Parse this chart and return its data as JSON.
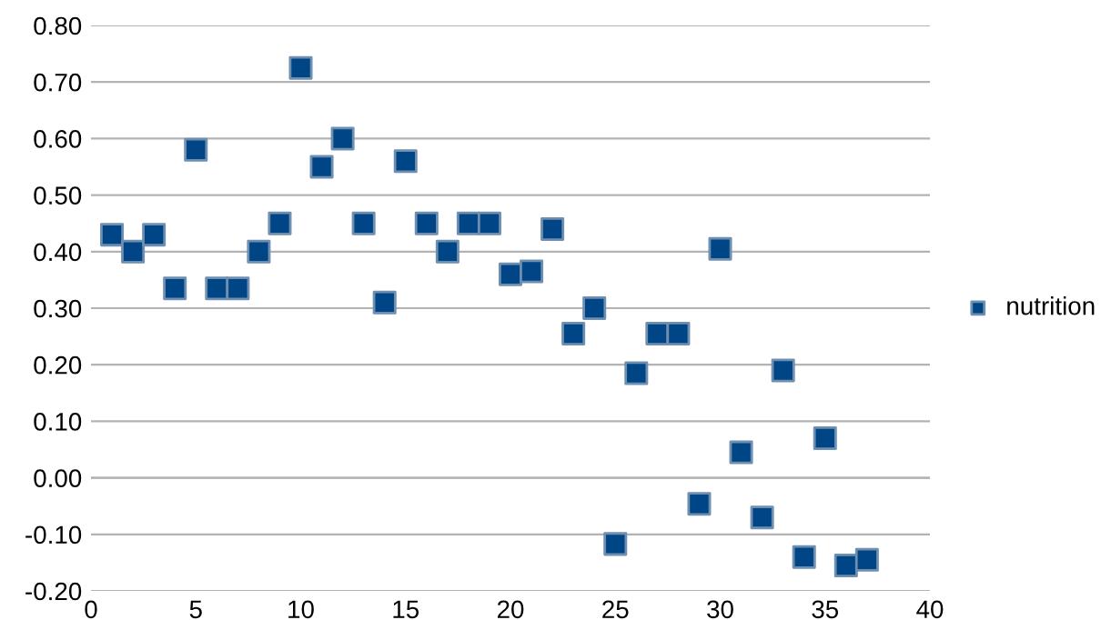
{
  "chart_data": {
    "type": "scatter",
    "x": [
      1,
      2,
      3,
      4,
      5,
      6,
      7,
      8,
      9,
      10,
      11,
      12,
      13,
      14,
      15,
      16,
      17,
      18,
      19,
      20,
      21,
      22,
      23,
      24,
      25,
      26,
      27,
      28,
      29,
      30,
      31,
      32,
      33,
      34,
      35,
      36,
      37
    ],
    "series": [
      {
        "name": "nutrition",
        "color": "#004586",
        "values": [
          0.43,
          0.4,
          0.43,
          0.335,
          0.58,
          0.335,
          0.335,
          0.4,
          0.45,
          0.725,
          0.55,
          0.6,
          0.45,
          0.31,
          0.56,
          0.45,
          0.4,
          0.45,
          0.45,
          0.36,
          0.365,
          0.44,
          0.255,
          0.3,
          -0.117,
          0.185,
          0.255,
          0.255,
          -0.046,
          0.405,
          0.045,
          -0.07,
          0.19,
          -0.14,
          0.07,
          -0.155,
          -0.145
        ]
      }
    ],
    "xlim": [
      0,
      40
    ],
    "xticks": [
      0,
      5,
      10,
      15,
      20,
      25,
      30,
      35,
      40
    ],
    "ylim": [
      -0.2,
      0.8
    ],
    "yticks": [
      {
        "value": -0.2,
        "label": "-0.20"
      },
      {
        "value": -0.1,
        "label": "-0.10"
      },
      {
        "value": 0,
        "label": "0.00"
      },
      {
        "value": 0.1,
        "label": "0.10"
      },
      {
        "value": 0.2,
        "label": "0.20"
      },
      {
        "value": 0.3,
        "label": "0.30"
      },
      {
        "value": 0.4,
        "label": "0.40"
      },
      {
        "value": 0.5,
        "label": "0.50"
      },
      {
        "value": 0.6,
        "label": "0.60"
      },
      {
        "value": 0.7,
        "label": "0.70"
      },
      {
        "value": 0.8,
        "label": "0.80"
      }
    ],
    "grid": "y",
    "legend": "right",
    "marker": "square"
  }
}
